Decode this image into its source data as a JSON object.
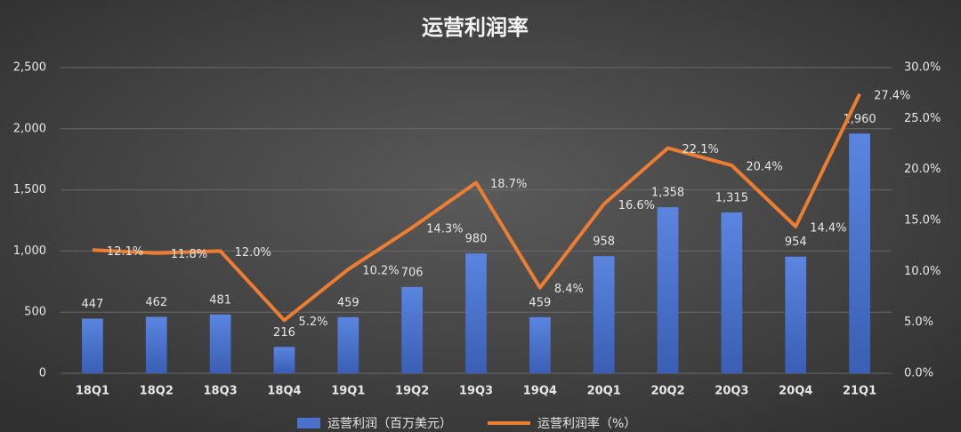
{
  "chart_data": {
    "type": "bar",
    "title": "运营利润率",
    "categories": [
      "18Q1",
      "18Q2",
      "18Q3",
      "18Q4",
      "19Q1",
      "19Q2",
      "19Q3",
      "19Q4",
      "20Q1",
      "20Q2",
      "20Q3",
      "20Q4",
      "21Q1"
    ],
    "series": [
      {
        "name": "运营利润（百万美元）",
        "type": "bar",
        "color": "#4a72cc",
        "values": [
          447,
          462,
          481,
          216,
          459,
          706,
          980,
          459,
          958,
          1358,
          1315,
          954,
          1960
        ],
        "value_labels": [
          "447",
          "462",
          "481",
          "216",
          "459",
          "706",
          "980",
          "459",
          "958",
          "1,358",
          "1,315",
          "954",
          "1,960"
        ]
      },
      {
        "name": "运营利润率（%）",
        "type": "line",
        "axis": "y2",
        "color": "#ed7d31",
        "values": [
          12.1,
          11.8,
          12.0,
          5.2,
          10.2,
          14.3,
          18.7,
          8.4,
          16.6,
          22.1,
          20.4,
          14.4,
          27.4
        ],
        "value_labels": [
          "12.1%",
          "11.8%",
          "12.0%",
          "5.2%",
          "10.2%",
          "14.3%",
          "18.7%",
          "8.4%",
          "16.6%",
          "22.1%",
          "20.4%",
          "14.4%",
          "27.4%"
        ]
      }
    ],
    "ylim": [
      0,
      2500
    ],
    "yticks": [
      0,
      500,
      {
        "value": 1000,
        "label": "1,000"
      },
      {
        "value": 1500,
        "label": "1,500"
      },
      {
        "value": 2000,
        "label": "2,000"
      },
      {
        "value": 2500,
        "label": "2,500"
      }
    ],
    "y2lim": [
      0,
      30
    ],
    "y2ticks": [
      {
        "value": 0,
        "label": "0.0%"
      },
      {
        "value": 5,
        "label": "5.0%"
      },
      {
        "value": 10,
        "label": "10.0%"
      },
      {
        "value": 15,
        "label": "15.0%"
      },
      {
        "value": 20,
        "label": "20.0%"
      },
      {
        "value": 25,
        "label": "25.0%"
      },
      {
        "value": 30,
        "label": "30.0%"
      }
    ],
    "grid": true,
    "legend": "bottom"
  }
}
